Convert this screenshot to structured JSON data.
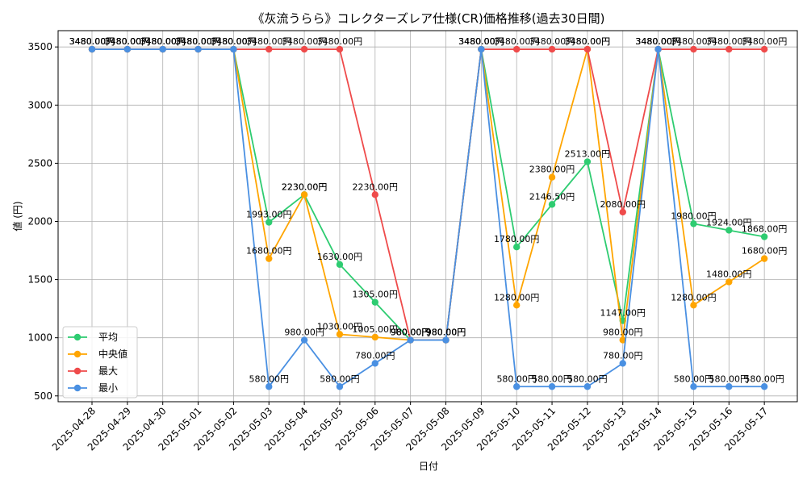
{
  "chart_data": {
    "type": "line",
    "title": "《灰流うらら》コレクターズレア仕様(CR)価格推移(過去30日間)",
    "xlabel": "日付",
    "ylabel": "値 (円)",
    "ylim": [
      450,
      3640
    ],
    "yticks": [
      500,
      1000,
      1500,
      2000,
      2500,
      3000,
      3500
    ],
    "grid": true,
    "legend_position": "lower-left",
    "label_suffix": "円",
    "categories": [
      "2025-04-28",
      "2025-04-29",
      "2025-04-30",
      "2025-05-01",
      "2025-05-02",
      "2025-05-03",
      "2025-05-04",
      "2025-05-05",
      "2025-05-06",
      "2025-05-07",
      "2025-05-08",
      "2025-05-09",
      "2025-05-10",
      "2025-05-11",
      "2025-05-12",
      "2025-05-13",
      "2025-05-14",
      "2025-05-15",
      "2025-05-16",
      "2025-05-17"
    ],
    "series": [
      {
        "name": "平均",
        "color": "#2ecc71",
        "values": [
          3480,
          3480,
          3480,
          3480,
          3480,
          1993,
          2230,
          1630,
          1305,
          980,
          980,
          3480,
          1780,
          2146.5,
          2513,
          1147,
          3480,
          1980,
          1924,
          1868
        ]
      },
      {
        "name": "中央値",
        "color": "#ffa500",
        "values": [
          3480,
          3480,
          3480,
          3480,
          3480,
          1680,
          2230,
          1030,
          1005,
          980,
          980,
          3480,
          1280,
          2380,
          3480,
          980,
          3480,
          1280,
          1480,
          1680
        ]
      },
      {
        "name": "最大",
        "color": "#ef4b4b",
        "values": [
          3480,
          3480,
          3480,
          3480,
          3480,
          3480,
          3480,
          3480,
          2230,
          980,
          980,
          3480,
          3480,
          3480,
          3480,
          2080,
          3480,
          3480,
          3480,
          3480
        ]
      },
      {
        "name": "最小",
        "color": "#4a90e2",
        "values": [
          3480,
          3480,
          3480,
          3480,
          3480,
          580,
          980,
          580,
          780,
          980,
          980,
          3480,
          580,
          580,
          580,
          780,
          3480,
          580,
          580,
          580
        ]
      }
    ]
  }
}
